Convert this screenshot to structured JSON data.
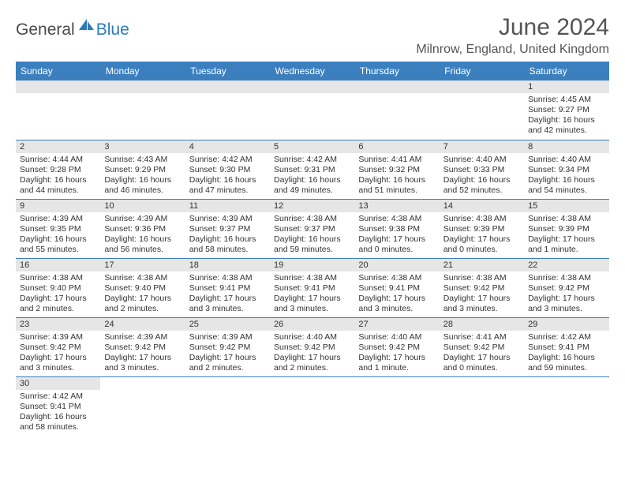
{
  "logo": {
    "part1": "General",
    "part2": "Blue"
  },
  "title": "June 2024",
  "location": "Milnrow, England, United Kingdom",
  "headers": [
    "Sunday",
    "Monday",
    "Tuesday",
    "Wednesday",
    "Thursday",
    "Friday",
    "Saturday"
  ],
  "header_bg": "#3b7fbf",
  "daynum_bg": "#e6e6e6",
  "rows": [
    [
      null,
      null,
      null,
      null,
      null,
      null,
      {
        "n": "1",
        "sr": "4:45 AM",
        "ss": "9:27 PM",
        "dl": "16 hours and 42 minutes."
      }
    ],
    [
      {
        "n": "2",
        "sr": "4:44 AM",
        "ss": "9:28 PM",
        "dl": "16 hours and 44 minutes."
      },
      {
        "n": "3",
        "sr": "4:43 AM",
        "ss": "9:29 PM",
        "dl": "16 hours and 46 minutes."
      },
      {
        "n": "4",
        "sr": "4:42 AM",
        "ss": "9:30 PM",
        "dl": "16 hours and 47 minutes."
      },
      {
        "n": "5",
        "sr": "4:42 AM",
        "ss": "9:31 PM",
        "dl": "16 hours and 49 minutes."
      },
      {
        "n": "6",
        "sr": "4:41 AM",
        "ss": "9:32 PM",
        "dl": "16 hours and 51 minutes."
      },
      {
        "n": "7",
        "sr": "4:40 AM",
        "ss": "9:33 PM",
        "dl": "16 hours and 52 minutes."
      },
      {
        "n": "8",
        "sr": "4:40 AM",
        "ss": "9:34 PM",
        "dl": "16 hours and 54 minutes."
      }
    ],
    [
      {
        "n": "9",
        "sr": "4:39 AM",
        "ss": "9:35 PM",
        "dl": "16 hours and 55 minutes."
      },
      {
        "n": "10",
        "sr": "4:39 AM",
        "ss": "9:36 PM",
        "dl": "16 hours and 56 minutes."
      },
      {
        "n": "11",
        "sr": "4:39 AM",
        "ss": "9:37 PM",
        "dl": "16 hours and 58 minutes."
      },
      {
        "n": "12",
        "sr": "4:38 AM",
        "ss": "9:37 PM",
        "dl": "16 hours and 59 minutes."
      },
      {
        "n": "13",
        "sr": "4:38 AM",
        "ss": "9:38 PM",
        "dl": "17 hours and 0 minutes."
      },
      {
        "n": "14",
        "sr": "4:38 AM",
        "ss": "9:39 PM",
        "dl": "17 hours and 0 minutes."
      },
      {
        "n": "15",
        "sr": "4:38 AM",
        "ss": "9:39 PM",
        "dl": "17 hours and 1 minute."
      }
    ],
    [
      {
        "n": "16",
        "sr": "4:38 AM",
        "ss": "9:40 PM",
        "dl": "17 hours and 2 minutes."
      },
      {
        "n": "17",
        "sr": "4:38 AM",
        "ss": "9:40 PM",
        "dl": "17 hours and 2 minutes."
      },
      {
        "n": "18",
        "sr": "4:38 AM",
        "ss": "9:41 PM",
        "dl": "17 hours and 3 minutes."
      },
      {
        "n": "19",
        "sr": "4:38 AM",
        "ss": "9:41 PM",
        "dl": "17 hours and 3 minutes."
      },
      {
        "n": "20",
        "sr": "4:38 AM",
        "ss": "9:41 PM",
        "dl": "17 hours and 3 minutes."
      },
      {
        "n": "21",
        "sr": "4:38 AM",
        "ss": "9:42 PM",
        "dl": "17 hours and 3 minutes."
      },
      {
        "n": "22",
        "sr": "4:38 AM",
        "ss": "9:42 PM",
        "dl": "17 hours and 3 minutes."
      }
    ],
    [
      {
        "n": "23",
        "sr": "4:39 AM",
        "ss": "9:42 PM",
        "dl": "17 hours and 3 minutes."
      },
      {
        "n": "24",
        "sr": "4:39 AM",
        "ss": "9:42 PM",
        "dl": "17 hours and 3 minutes."
      },
      {
        "n": "25",
        "sr": "4:39 AM",
        "ss": "9:42 PM",
        "dl": "17 hours and 2 minutes."
      },
      {
        "n": "26",
        "sr": "4:40 AM",
        "ss": "9:42 PM",
        "dl": "17 hours and 2 minutes."
      },
      {
        "n": "27",
        "sr": "4:40 AM",
        "ss": "9:42 PM",
        "dl": "17 hours and 1 minute."
      },
      {
        "n": "28",
        "sr": "4:41 AM",
        "ss": "9:42 PM",
        "dl": "17 hours and 0 minutes."
      },
      {
        "n": "29",
        "sr": "4:42 AM",
        "ss": "9:41 PM",
        "dl": "16 hours and 59 minutes."
      }
    ],
    [
      {
        "n": "30",
        "sr": "4:42 AM",
        "ss": "9:41 PM",
        "dl": "16 hours and 58 minutes."
      },
      null,
      null,
      null,
      null,
      null,
      null
    ]
  ],
  "labels": {
    "sunrise": "Sunrise: ",
    "sunset": "Sunset: ",
    "daylight": "Daylight: "
  }
}
